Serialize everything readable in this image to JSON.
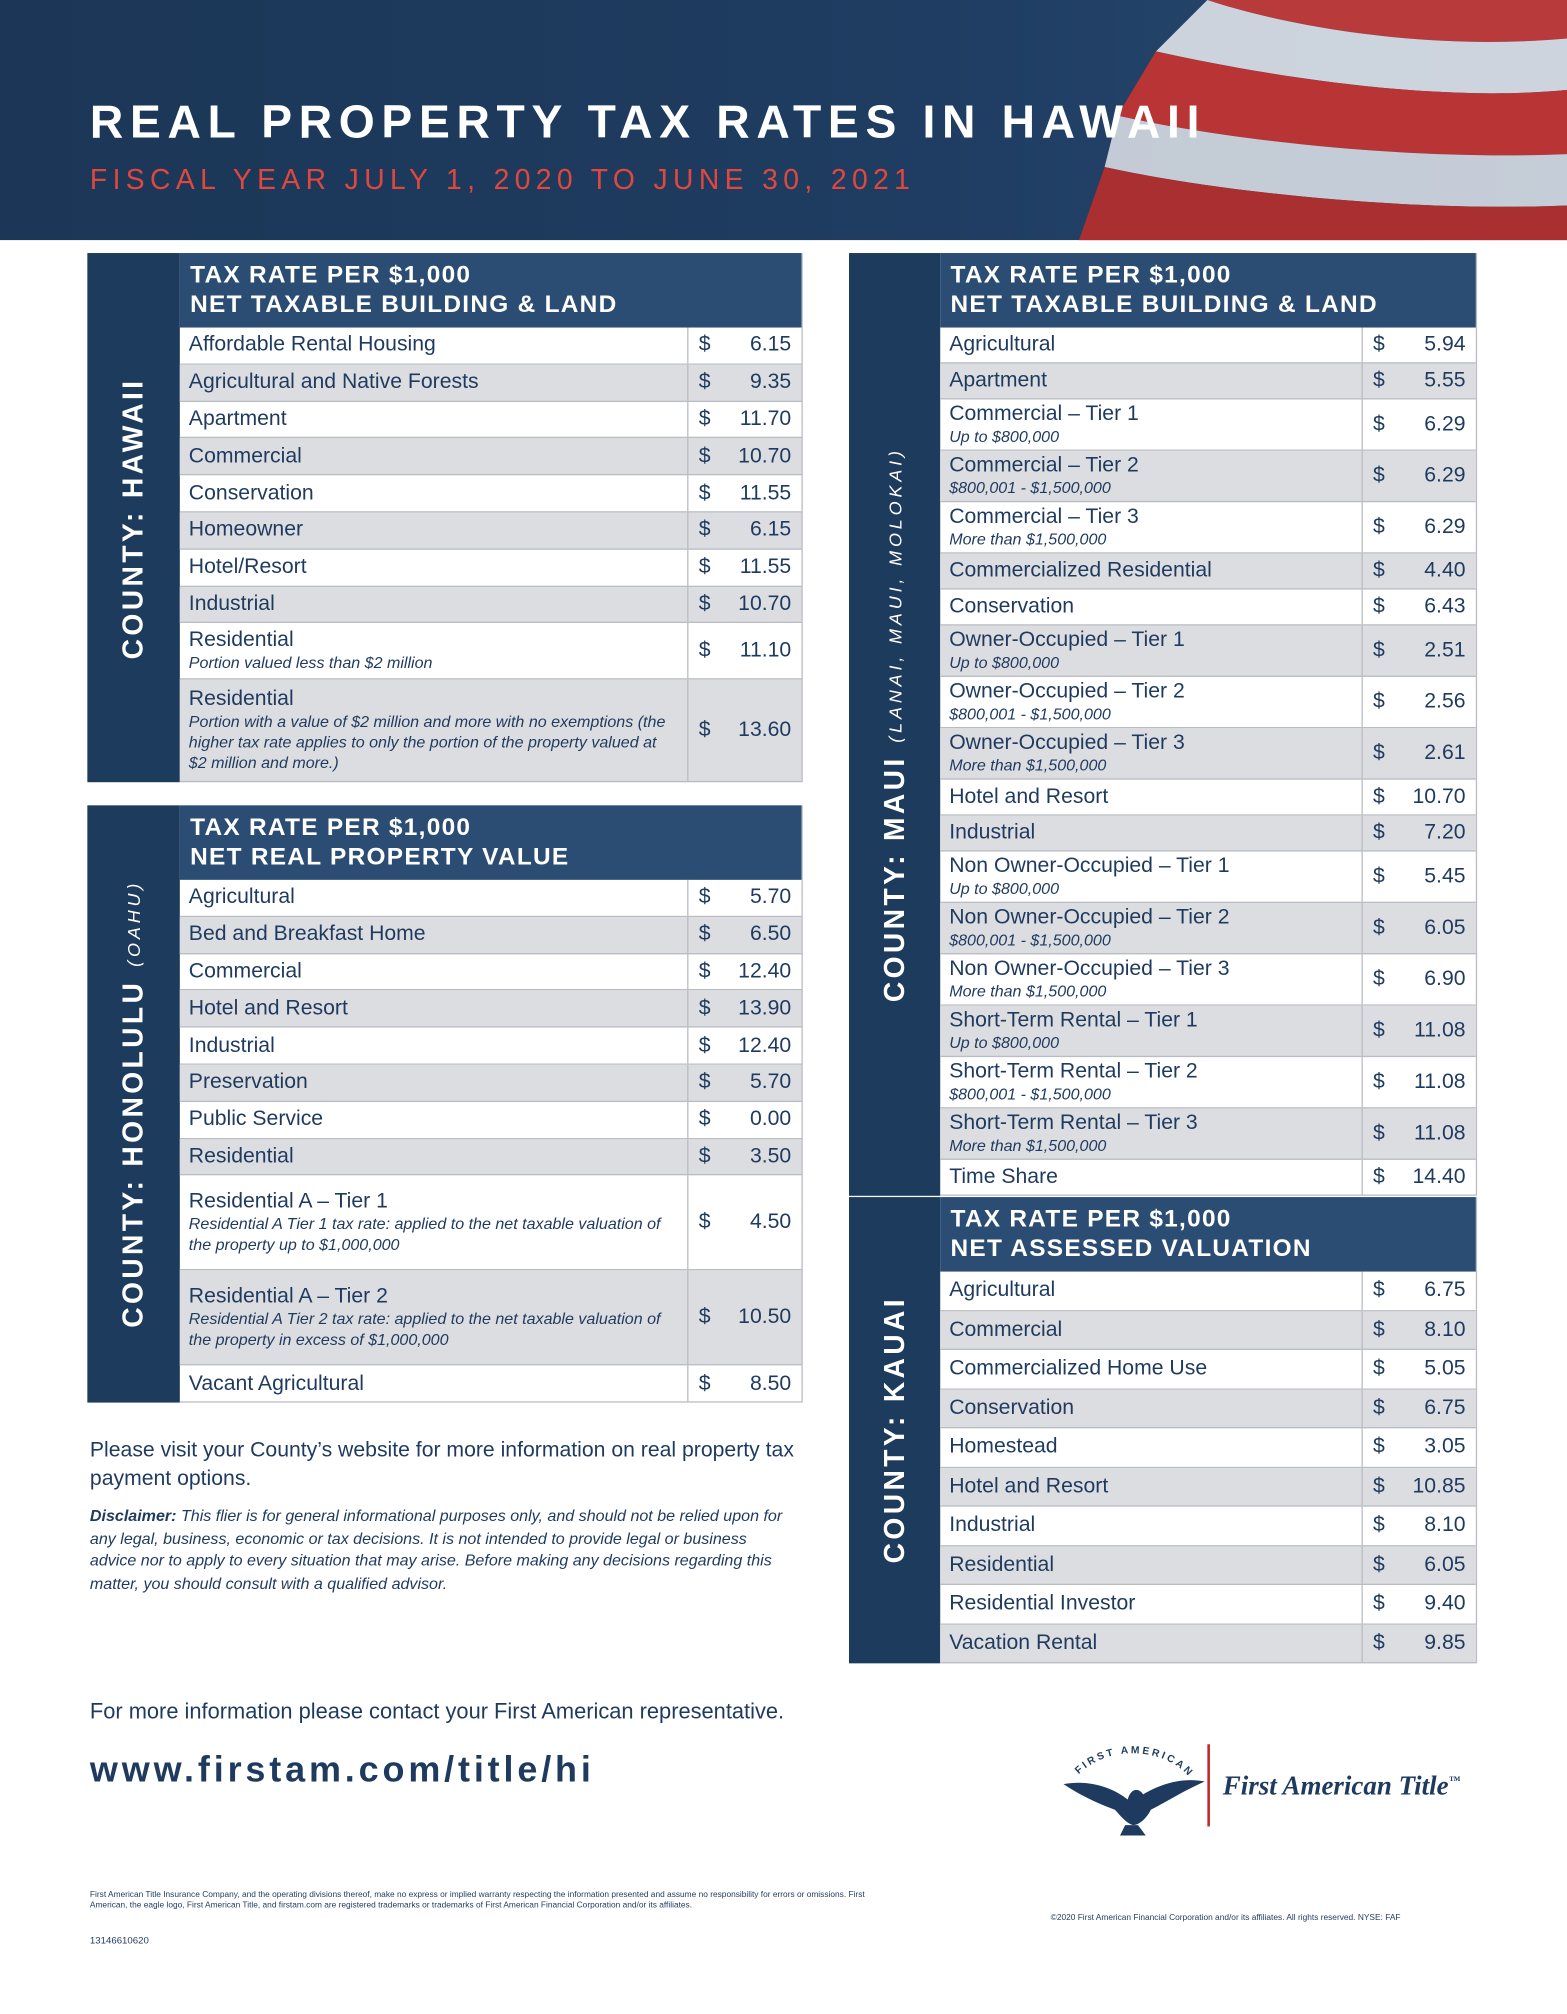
{
  "header": {
    "title": "REAL PROPERTY TAX RATES IN HAWAII",
    "subtitle": "FISCAL YEAR JULY 1, 2020 TO JUNE 30, 2021"
  },
  "counties": [
    {
      "name": "COUNTY: HAWAII",
      "heading": [
        "TAX RATE PER $1,000",
        "NET TAXABLE BUILDING & LAND"
      ],
      "currency": "$",
      "rows": [
        {
          "label": "Affordable Rental Housing",
          "value": "6.15"
        },
        {
          "label": "Agricultural and Native Forests",
          "value": "9.35"
        },
        {
          "label": "Apartment",
          "value": "11.70"
        },
        {
          "label": "Commercial",
          "value": "10.70"
        },
        {
          "label": "Conservation",
          "value": "11.55"
        },
        {
          "label": "Homeowner",
          "value": "6.15"
        },
        {
          "label": "Hotel/Resort",
          "value": "11.55"
        },
        {
          "label": "Industrial",
          "value": "10.70"
        },
        {
          "label": "Residential",
          "note": "Portion valued less than $2 million",
          "value": "11.10"
        },
        {
          "label": "Residential",
          "note": "Portion with a value of $2 million and more with no exemptions (the higher tax rate applies to only the portion of the property valued at $2 million and more.)",
          "value": "13.60"
        }
      ]
    },
    {
      "name": "COUNTY: HONOLULU",
      "sub": "(OAHU)",
      "heading": [
        "TAX RATE PER $1,000",
        "NET REAL PROPERTY VALUE"
      ],
      "currency": "$",
      "rows": [
        {
          "label": "Agricultural",
          "value": "5.70"
        },
        {
          "label": "Bed and Breakfast Home",
          "value": "6.50"
        },
        {
          "label": "Commercial",
          "value": "12.40"
        },
        {
          "label": "Hotel and Resort",
          "value": "13.90"
        },
        {
          "label": "Industrial",
          "value": "12.40"
        },
        {
          "label": "Preservation",
          "value": "5.70"
        },
        {
          "label": "Public Service",
          "value": "0.00"
        },
        {
          "label": "Residential",
          "value": "3.50"
        },
        {
          "label": "Residential A – Tier 1",
          "note": "Residential A Tier 1 tax rate: applied to the net taxable valuation of the property up to $1,000,000",
          "value": "4.50"
        },
        {
          "label": "Residential A – Tier 2",
          "note": "Residential A Tier 2 tax rate: applied to the net taxable valuation of the property in excess of $1,000,000",
          "value": "10.50"
        },
        {
          "label": "Vacant Agricultural",
          "value": "8.50"
        }
      ]
    },
    {
      "name": "COUNTY: MAUI",
      "sub": "(LANAI, MAUI, MOLOKAI)",
      "heading": [
        "TAX RATE PER $1,000",
        "NET TAXABLE BUILDING & LAND"
      ],
      "currency": "$",
      "rows": [
        {
          "label": "Agricultural",
          "value": "5.94"
        },
        {
          "label": "Apartment",
          "value": "5.55"
        },
        {
          "label": "Commercial – Tier 1",
          "note": "Up to $800,000",
          "value": "6.29"
        },
        {
          "label": "Commercial – Tier 2",
          "note": "$800,001 - $1,500,000",
          "value": "6.29"
        },
        {
          "label": "Commercial – Tier 3",
          "note": "More than $1,500,000",
          "value": "6.29"
        },
        {
          "label": "Commercialized Residential",
          "value": "4.40"
        },
        {
          "label": "Conservation",
          "value": "6.43"
        },
        {
          "label": "Owner-Occupied – Tier 1",
          "note": "Up to $800,000",
          "value": "2.51"
        },
        {
          "label": "Owner-Occupied – Tier 2",
          "note": "$800,001 - $1,500,000",
          "value": "2.56"
        },
        {
          "label": "Owner-Occupied – Tier 3",
          "note": "More than $1,500,000",
          "value": "2.61"
        },
        {
          "label": "Hotel and Resort",
          "value": "10.70"
        },
        {
          "label": "Industrial",
          "value": "7.20"
        },
        {
          "label": "Non Owner-Occupied – Tier 1",
          "note": "Up to $800,000",
          "value": "5.45"
        },
        {
          "label": "Non Owner-Occupied – Tier 2",
          "note": "$800,001 - $1,500,000",
          "value": "6.05"
        },
        {
          "label": "Non Owner-Occupied – Tier 3",
          "note": "More than $1,500,000",
          "value": "6.90"
        },
        {
          "label": "Short-Term Rental – Tier 1",
          "note": "Up to $800,000",
          "value": "11.08"
        },
        {
          "label": "Short-Term Rental – Tier 2",
          "note": "$800,001 - $1,500,000",
          "value": "11.08"
        },
        {
          "label": "Short-Term Rental – Tier 3",
          "note": "More than $1,500,000",
          "value": "11.08"
        },
        {
          "label": "Time Share",
          "value": "14.40"
        }
      ]
    },
    {
      "name": "COUNTY: KAUAI",
      "heading": [
        "TAX RATE PER $1,000",
        "NET ASSESSED VALUATION"
      ],
      "currency": "$",
      "rows": [
        {
          "label": "Agricultural",
          "value": "6.75"
        },
        {
          "label": "Commercial",
          "value": "8.10"
        },
        {
          "label": "Commercialized Home Use",
          "value": "5.05"
        },
        {
          "label": "Conservation",
          "value": "6.75"
        },
        {
          "label": "Homestead",
          "value": "3.05"
        },
        {
          "label": "Hotel and Resort",
          "value": "10.85"
        },
        {
          "label": "Industrial",
          "value": "8.10"
        },
        {
          "label": "Residential",
          "value": "6.05"
        },
        {
          "label": "Residential Investor",
          "value": "9.40"
        },
        {
          "label": "Vacation Rental",
          "value": "9.85"
        }
      ]
    }
  ],
  "footer": {
    "visit": "Please visit your County’s website for more information on real property tax payment options.",
    "disclaimer_label": "Disclaimer:",
    "disclaimer": "This flier is for general informational purposes only, and should not be relied upon for any legal, business, economic or tax decisions. It is not intended to provide legal or business advice nor to apply to every situation that may arise. Before making any decisions regarding this matter, you should consult with a qualified advisor.",
    "contact": "For more information please contact your First American representative.",
    "url": "www.firstam.com/title/hi",
    "logo_arc": "FIRST AMERICAN",
    "logo_name": "First American Title",
    "logo_tm": "™",
    "legal": "First American Title Insurance Company, and the operating divisions thereof, make no express or implied warranty respecting the information presented and assume no responsibility for errors or omissions. First American, the eagle logo, First American Title, and firstam.com are registered trademarks or trademarks of First American Financial Corporation and/or its affiliates.",
    "code": "13146610620",
    "copyright": "©2020 First American Financial Corporation and/or its affiliates. All rights reserved.  NYSE: FAF"
  }
}
